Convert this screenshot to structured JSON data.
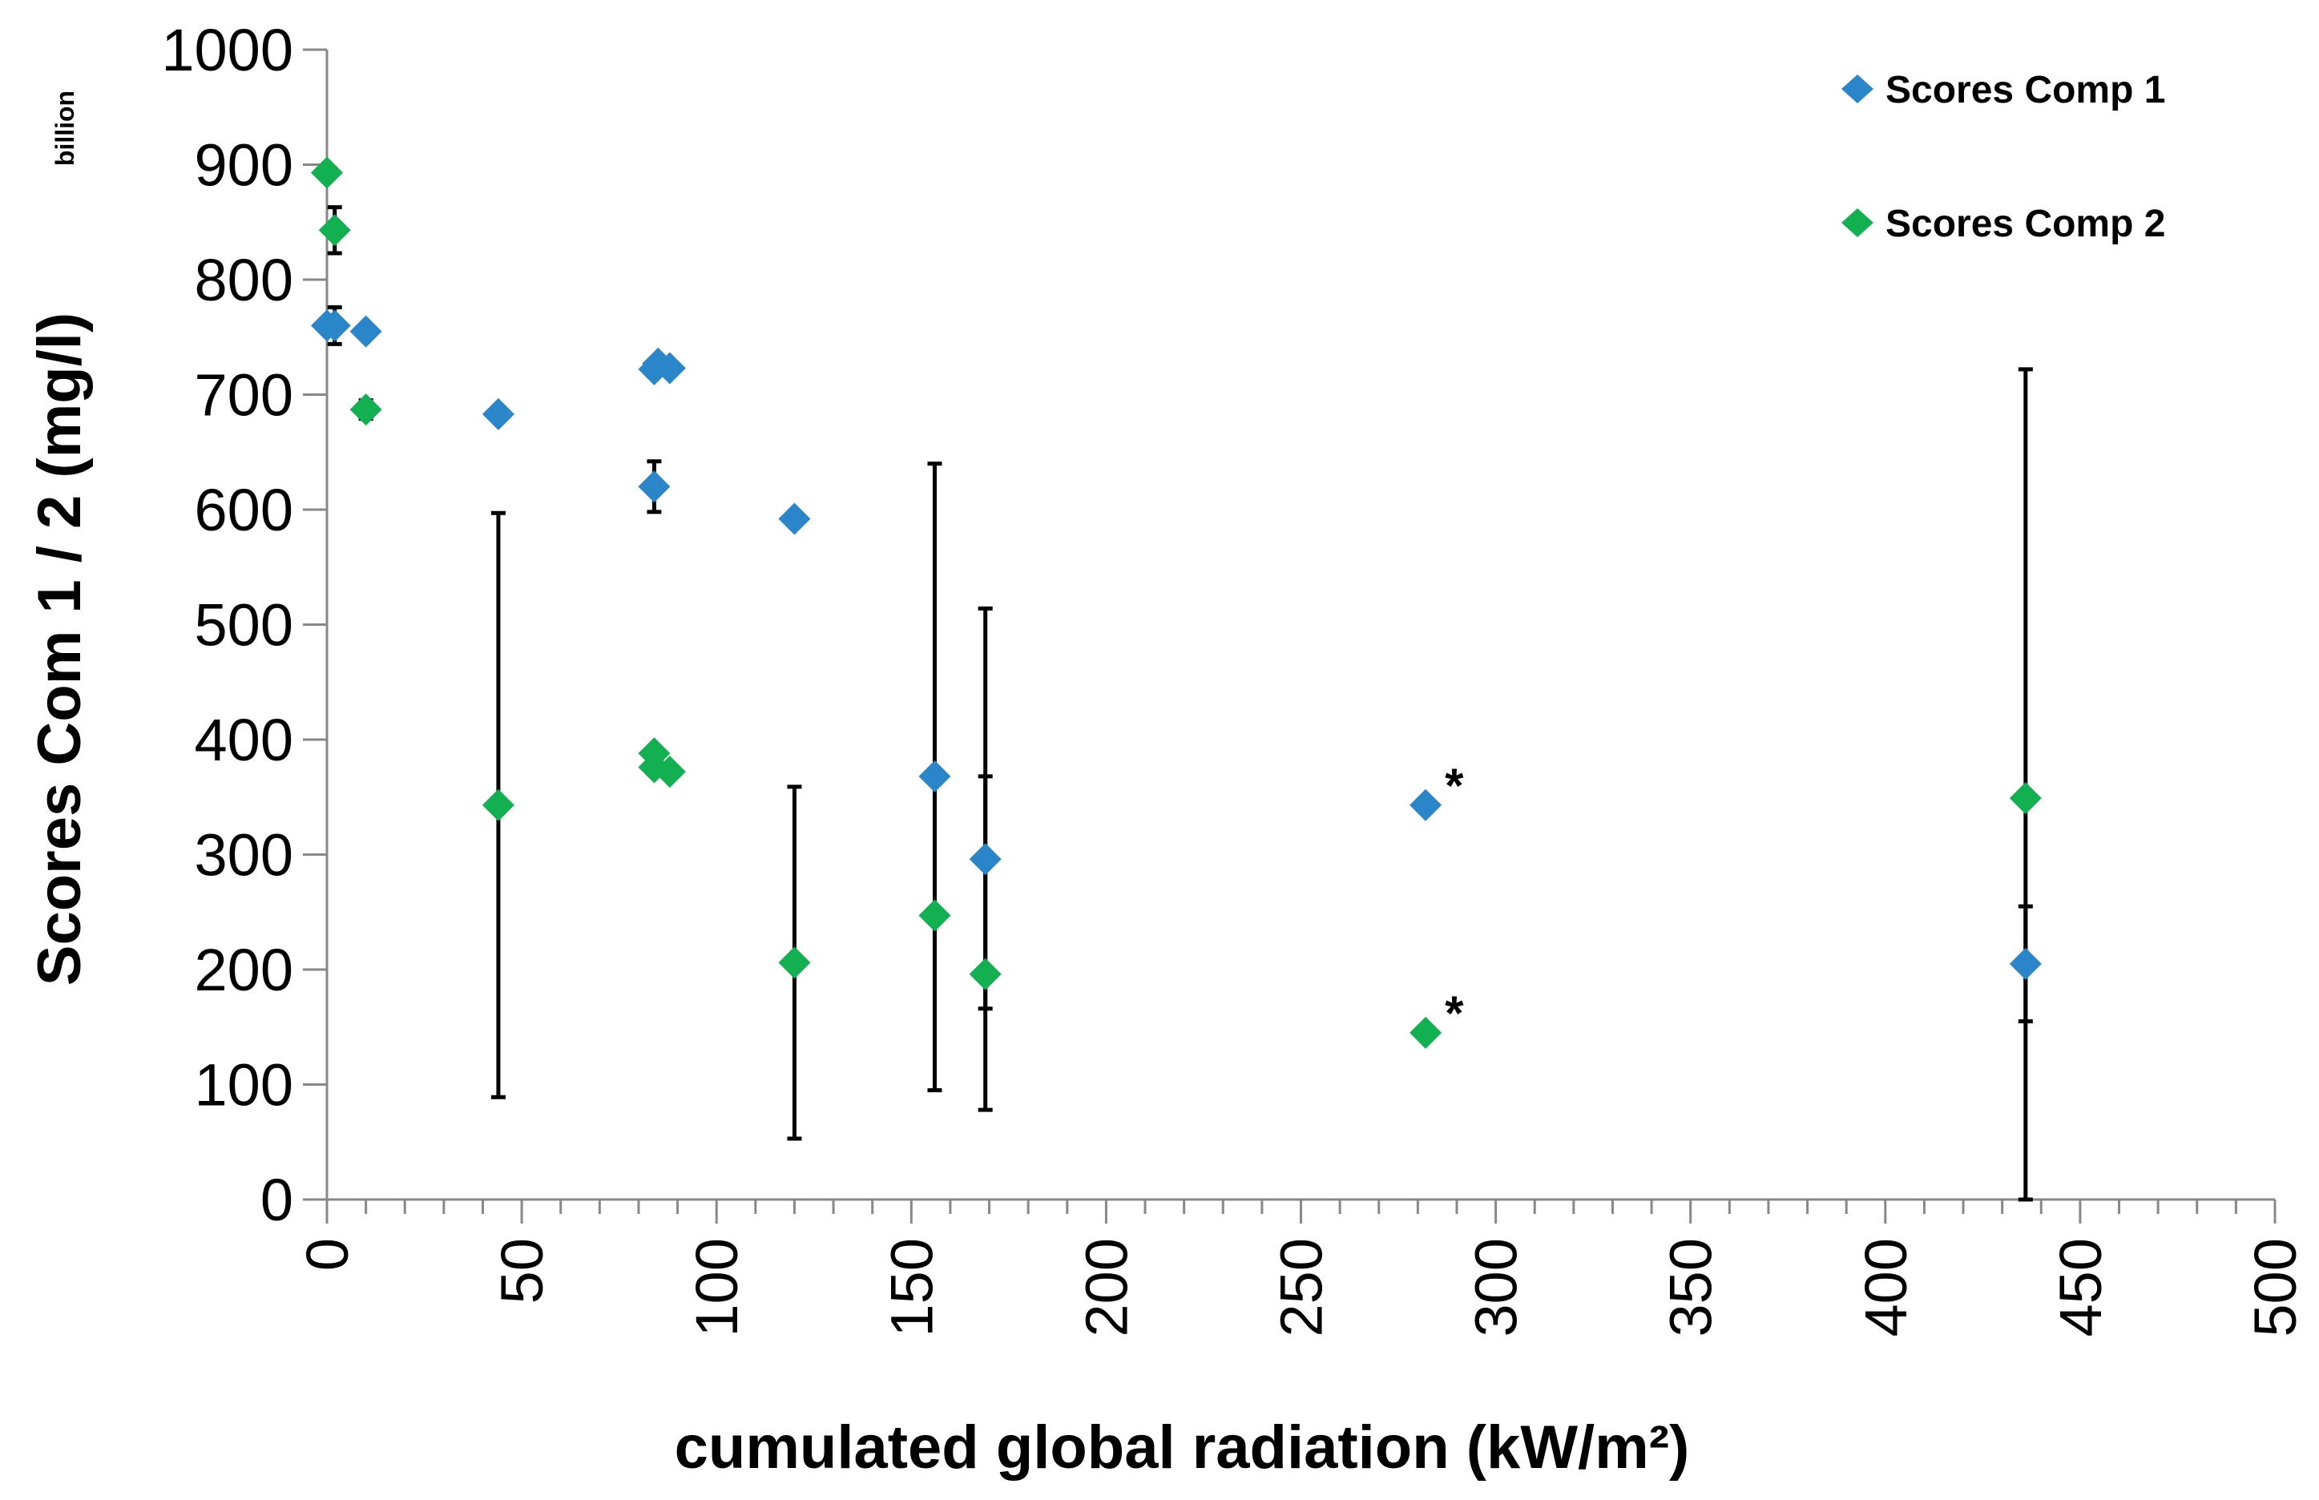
{
  "chart_data": {
    "type": "scatter",
    "title": "",
    "xlabel": "cumulated global radiation (kW/m²)",
    "ylabel": "Scores Com 1 / 2 (mg/l)",
    "y_unit_note": "billion",
    "xlim": [
      0,
      500
    ],
    "ylim": [
      0,
      1000
    ],
    "x_ticks": [
      "0",
      "50",
      "100",
      "150",
      "200",
      "250",
      "300",
      "350",
      "400",
      "450",
      "500"
    ],
    "y_ticks": [
      "0",
      "100",
      "200",
      "300",
      "400",
      "500",
      "600",
      "700",
      "800",
      "900",
      "1000"
    ],
    "legend_position": "top-right",
    "series": [
      {
        "name": "Scores Comp 1",
        "color": "#2a86c8",
        "points": [
          {
            "x": 0,
            "y": 760
          },
          {
            "x": 2,
            "y": 760,
            "err_low": 16,
            "err_high": 16
          },
          {
            "x": 10,
            "y": 755
          },
          {
            "x": 44,
            "y": 683
          },
          {
            "x": 84,
            "y": 620,
            "err_low": 22,
            "err_high": 22
          },
          {
            "x": 84,
            "y": 722
          },
          {
            "x": 85,
            "y": 727
          },
          {
            "x": 88,
            "y": 723
          },
          {
            "x": 120,
            "y": 592
          },
          {
            "x": 156,
            "y": 368
          },
          {
            "x": 169,
            "y": 296,
            "err_low": 130,
            "err_high": 72
          },
          {
            "x": 282,
            "y": 343,
            "note": "*"
          },
          {
            "x": 436,
            "y": 205,
            "err_low": 50,
            "err_high": 50
          }
        ]
      },
      {
        "name": "Scores Comp 2",
        "color": "#12b050",
        "points": [
          {
            "x": 0,
            "y": 893
          },
          {
            "x": 2,
            "y": 843,
            "err_low": 20,
            "err_high": 20
          },
          {
            "x": 10,
            "y": 687,
            "err_low": 8,
            "err_high": 8
          },
          {
            "x": 44,
            "y": 343,
            "err_low": 254,
            "err_high": 254
          },
          {
            "x": 84,
            "y": 388
          },
          {
            "x": 84,
            "y": 376
          },
          {
            "x": 88,
            "y": 372
          },
          {
            "x": 120,
            "y": 206,
            "err_low": 153,
            "err_high": 153
          },
          {
            "x": 156,
            "y": 247,
            "err_low": 152,
            "err_high": 393
          },
          {
            "x": 169,
            "y": 196,
            "err_low": 118,
            "err_high": 318
          },
          {
            "x": 282,
            "y": 145,
            "note": "*"
          },
          {
            "x": 436,
            "y": 349,
            "err_low": 349,
            "err_high": 373
          }
        ]
      }
    ]
  }
}
